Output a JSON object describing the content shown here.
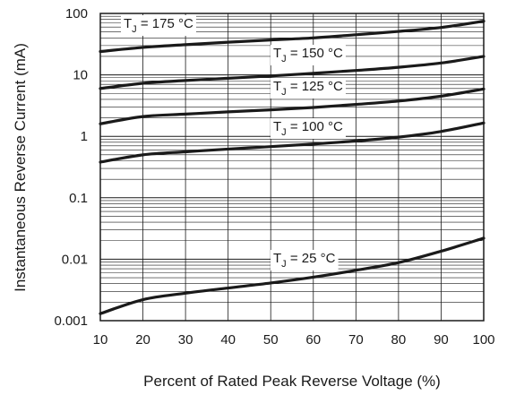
{
  "chart_data": {
    "type": "line",
    "title": "",
    "xlabel": "Percent of Rated Peak Reverse Voltage (%)",
    "ylabel": "Instantaneous Reverse Current (mA)",
    "xlim": [
      10,
      100
    ],
    "ylim": [
      0.001,
      100
    ],
    "yscale": "log",
    "grid": true,
    "x_ticks": [
      "10",
      "20",
      "30",
      "40",
      "50",
      "60",
      "70",
      "80",
      "90",
      "100"
    ],
    "y_ticks": [
      "0.001",
      "0.01",
      "0.1",
      "1",
      "10",
      "100"
    ],
    "x": [
      10,
      20,
      30,
      40,
      50,
      60,
      70,
      80,
      90,
      100
    ],
    "series": [
      {
        "name_prefix": "T",
        "name_sub": "J",
        "name_suffix": " = 175 °C",
        "values": [
          24,
          28,
          31,
          34,
          37,
          40,
          45,
          51,
          59,
          75
        ]
      },
      {
        "name_prefix": "T",
        "name_sub": "J",
        "name_suffix": " = 150 °C",
        "values": [
          6,
          7.3,
          8.1,
          8.8,
          9.6,
          10.6,
          11.8,
          13.3,
          15.6,
          20
        ]
      },
      {
        "name_prefix": "T",
        "name_sub": "J",
        "name_suffix": " = 125 °C",
        "values": [
          1.6,
          2.1,
          2.3,
          2.5,
          2.7,
          2.95,
          3.3,
          3.75,
          4.5,
          5.9
        ]
      },
      {
        "name_prefix": "T",
        "name_sub": "J",
        "name_suffix": " = 100 °C",
        "values": [
          0.38,
          0.5,
          0.56,
          0.62,
          0.68,
          0.75,
          0.84,
          0.97,
          1.2,
          1.65
        ]
      },
      {
        "name_prefix": "T",
        "name_sub": "J",
        "name_suffix": " = 25 °C",
        "values": [
          0.0013,
          0.0022,
          0.0028,
          0.0034,
          0.0041,
          0.0051,
          0.0066,
          0.0088,
          0.0135,
          0.022
        ]
      }
    ]
  },
  "colors": {
    "line": "#1a1a1a",
    "grid": "#1a1a1a",
    "background": "#ffffff"
  }
}
